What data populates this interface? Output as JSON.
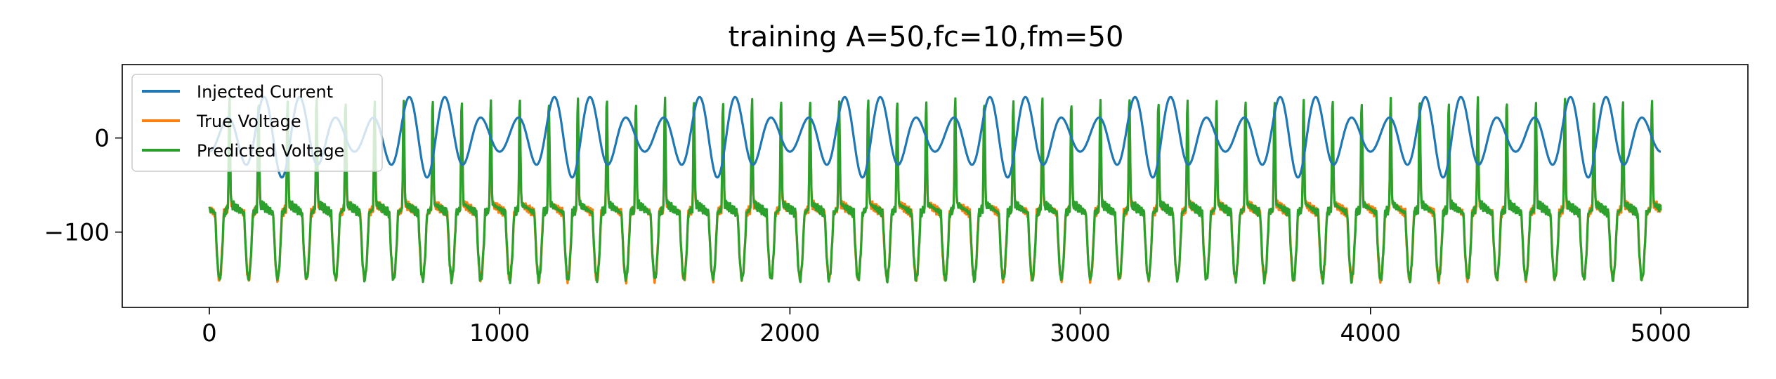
{
  "chart_data": {
    "type": "line",
    "title": "training A=50,fc=10,fm=50",
    "xlabel": "",
    "ylabel": "",
    "xlim": [
      -300,
      5300
    ],
    "ylim": [
      -180,
      78
    ],
    "x_ticks": [
      0,
      1000,
      2000,
      3000,
      4000,
      5000
    ],
    "x_tick_labels": [
      "0",
      "1000",
      "2000",
      "3000",
      "4000",
      "5000"
    ],
    "y_ticks": [
      0,
      -100
    ],
    "y_tick_labels": [
      "0",
      "−100"
    ],
    "grid": false,
    "legend_position": "upper-left",
    "samples": 5000,
    "series": [
      {
        "name": "Injected Current",
        "color": "#1f77b4",
        "model": "A * sin(2*pi*fc*t) * (1 + sin(2*pi*t)) / 2 ... approximated as amplitude-modulated sine",
        "amplitude_max": 48,
        "amplitude_min": -42,
        "carrier_period": 125,
        "modulation_period": 500
      },
      {
        "name": "True Voltage",
        "color": "#ff7f0e",
        "baseline": -75,
        "spike_peak": 48,
        "trough_min": -165,
        "spike_period": 100
      },
      {
        "name": "Predicted Voltage",
        "color": "#2ca02c",
        "baseline": -75,
        "spike_peak": 62,
        "trough_min": -165,
        "spike_period": 100
      }
    ]
  }
}
